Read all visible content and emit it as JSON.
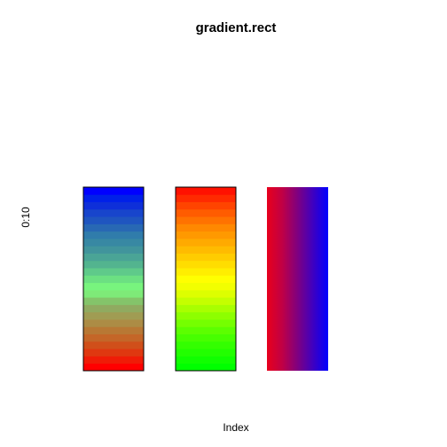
{
  "chart_data": {
    "type": "heatmap",
    "title": "gradient.rect",
    "xlabel": "Index",
    "ylabel": "0:10",
    "rects": [
      {
        "direction": "vertical",
        "bands_bottom_to_top": [
          "#FF0000",
          "#EF1C07",
          "#DF3810",
          "#D04F1A",
          "#C46628",
          "#B87834",
          "#AC8C45",
          "#A09C53",
          "#90AA60",
          "#84C46A",
          "#7EEA78",
          "#78F47E",
          "#6CE082",
          "#5FCA8A",
          "#53B48F",
          "#4AA496",
          "#41949C",
          "#3888A3",
          "#307CAB",
          "#2868B4",
          "#1F55C0",
          "#1845CC",
          "#0E2FD9",
          "#0020E8",
          "#0000FF"
        ]
      },
      {
        "direction": "vertical",
        "bands_bottom_to_top": [
          "#00FF00",
          "#10FF00",
          "#22FF00",
          "#33FF00",
          "#47FF00",
          "#5CFF00",
          "#75FF00",
          "#8DFF00",
          "#A8FF00",
          "#C4FF00",
          "#DDFF00",
          "#F2FF00",
          "#FFFF00",
          "#FFEE00",
          "#FFDD00",
          "#FFCC00",
          "#FFBB00",
          "#FFAA00",
          "#FF9900",
          "#FF8800",
          "#FF7200",
          "#FF5C00",
          "#FF4400",
          "#FF2A00",
          "#FF1100"
        ]
      },
      {
        "direction": "horizontal",
        "stops_left_to_right": [
          "#E8001C",
          "#C00045",
          "#7F0080",
          "#3F00C0",
          "#0000FF"
        ]
      }
    ]
  }
}
